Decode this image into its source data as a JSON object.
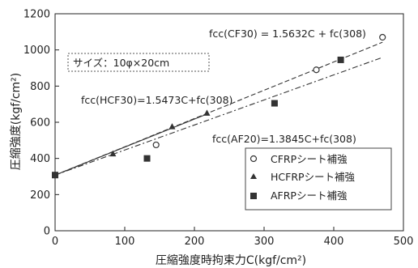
{
  "chart_data": {
    "type": "scatter",
    "xlabel": "圧縮強度時拘束力C(kgf/cm²)",
    "ylabel": "圧縮強度(kgf/cm²)",
    "xlim": [
      0,
      500
    ],
    "ylim": [
      0,
      1200
    ],
    "x_ticks": [
      0,
      100,
      200,
      300,
      400,
      500
    ],
    "y_ticks": [
      0,
      200,
      400,
      600,
      800,
      1000,
      1200
    ],
    "grid": false,
    "legend_placement": "bottom-right",
    "series": [
      {
        "name": "CFRPシート補強",
        "marker": "open-circle",
        "points": [
          [
            0,
            308
          ],
          [
            145,
            475
          ],
          [
            375,
            890
          ],
          [
            470,
            1070
          ]
        ]
      },
      {
        "name": "HCFRPシート補強",
        "marker": "filled-triangle",
        "points": [
          [
            0,
            308
          ],
          [
            83,
            425
          ],
          [
            168,
            575
          ],
          [
            218,
            650
          ]
        ]
      },
      {
        "name": "AFRPシート補強",
        "marker": "filled-square",
        "points": [
          [
            0,
            308
          ],
          [
            132,
            400
          ],
          [
            315,
            705
          ],
          [
            410,
            945
          ]
        ]
      }
    ],
    "fit_lines": [
      {
        "label": "fcc(CF30) = 1.5632C + fc(308)",
        "slope": 1.5632,
        "intercept": 308,
        "x_range": [
          0,
          470
        ],
        "style": "dashed"
      },
      {
        "label": "fcc(HCF30)=1.5473C+fc(308)",
        "slope": 1.5473,
        "intercept": 308,
        "x_range": [
          0,
          218
        ],
        "style": "solid"
      },
      {
        "label": "fcc(AF20)=1.3845C+fc(308)",
        "slope": 1.3845,
        "intercept": 308,
        "x_range": [
          0,
          470
        ],
        "style": "dash-dot"
      }
    ],
    "annotations": {
      "size_label": "サイズ：10φ×20cm"
    }
  },
  "colors": {
    "axis": "#222222",
    "marker": "#333333",
    "line": "#333333"
  }
}
